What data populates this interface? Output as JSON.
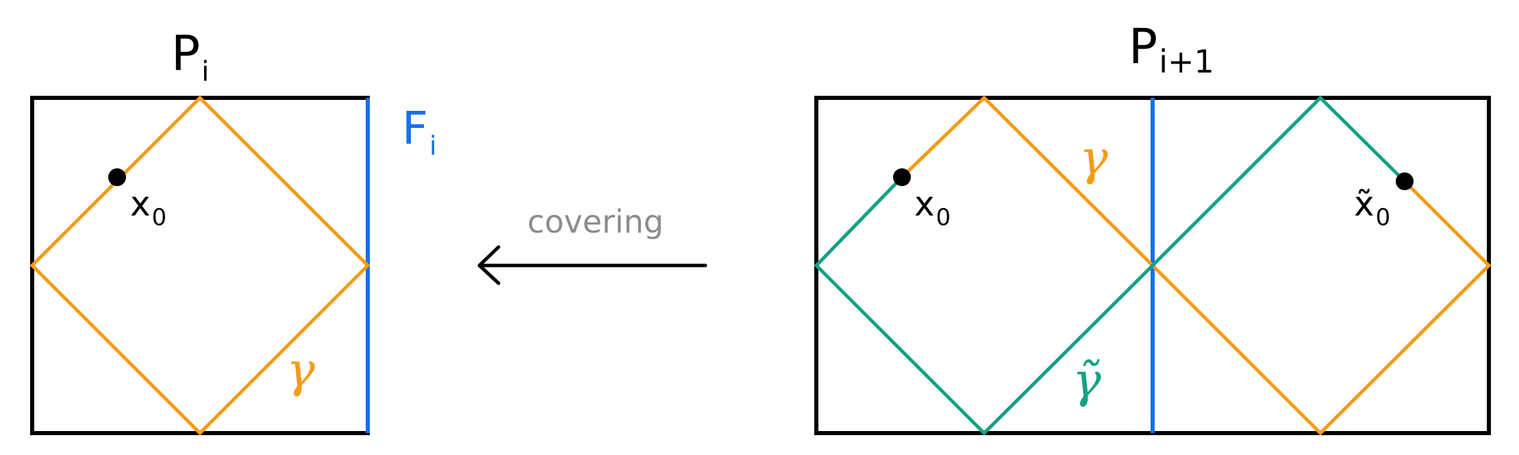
{
  "left_panel": {
    "title_main": "P",
    "title_sub": "i",
    "fold_label_main": "F",
    "fold_label_sub": "i",
    "point_label_main": "x",
    "point_label_sub": "0",
    "curve_label": "γ"
  },
  "arrow": {
    "label": "covering"
  },
  "right_panel": {
    "title_main": "P",
    "title_sub": "i+1",
    "point_label_main": "x",
    "point_label_sub": "0",
    "lift_point_label_main": "x̃",
    "lift_point_label_sub": "0",
    "curve_label": "γ",
    "lift_curve_label": "γ̃"
  },
  "colors": {
    "outline": "#000000",
    "gamma": "#F39C12",
    "gamma_lift": "#16A085",
    "fold_line": "#1570EF",
    "arrow_label": "#8C8C8C"
  }
}
